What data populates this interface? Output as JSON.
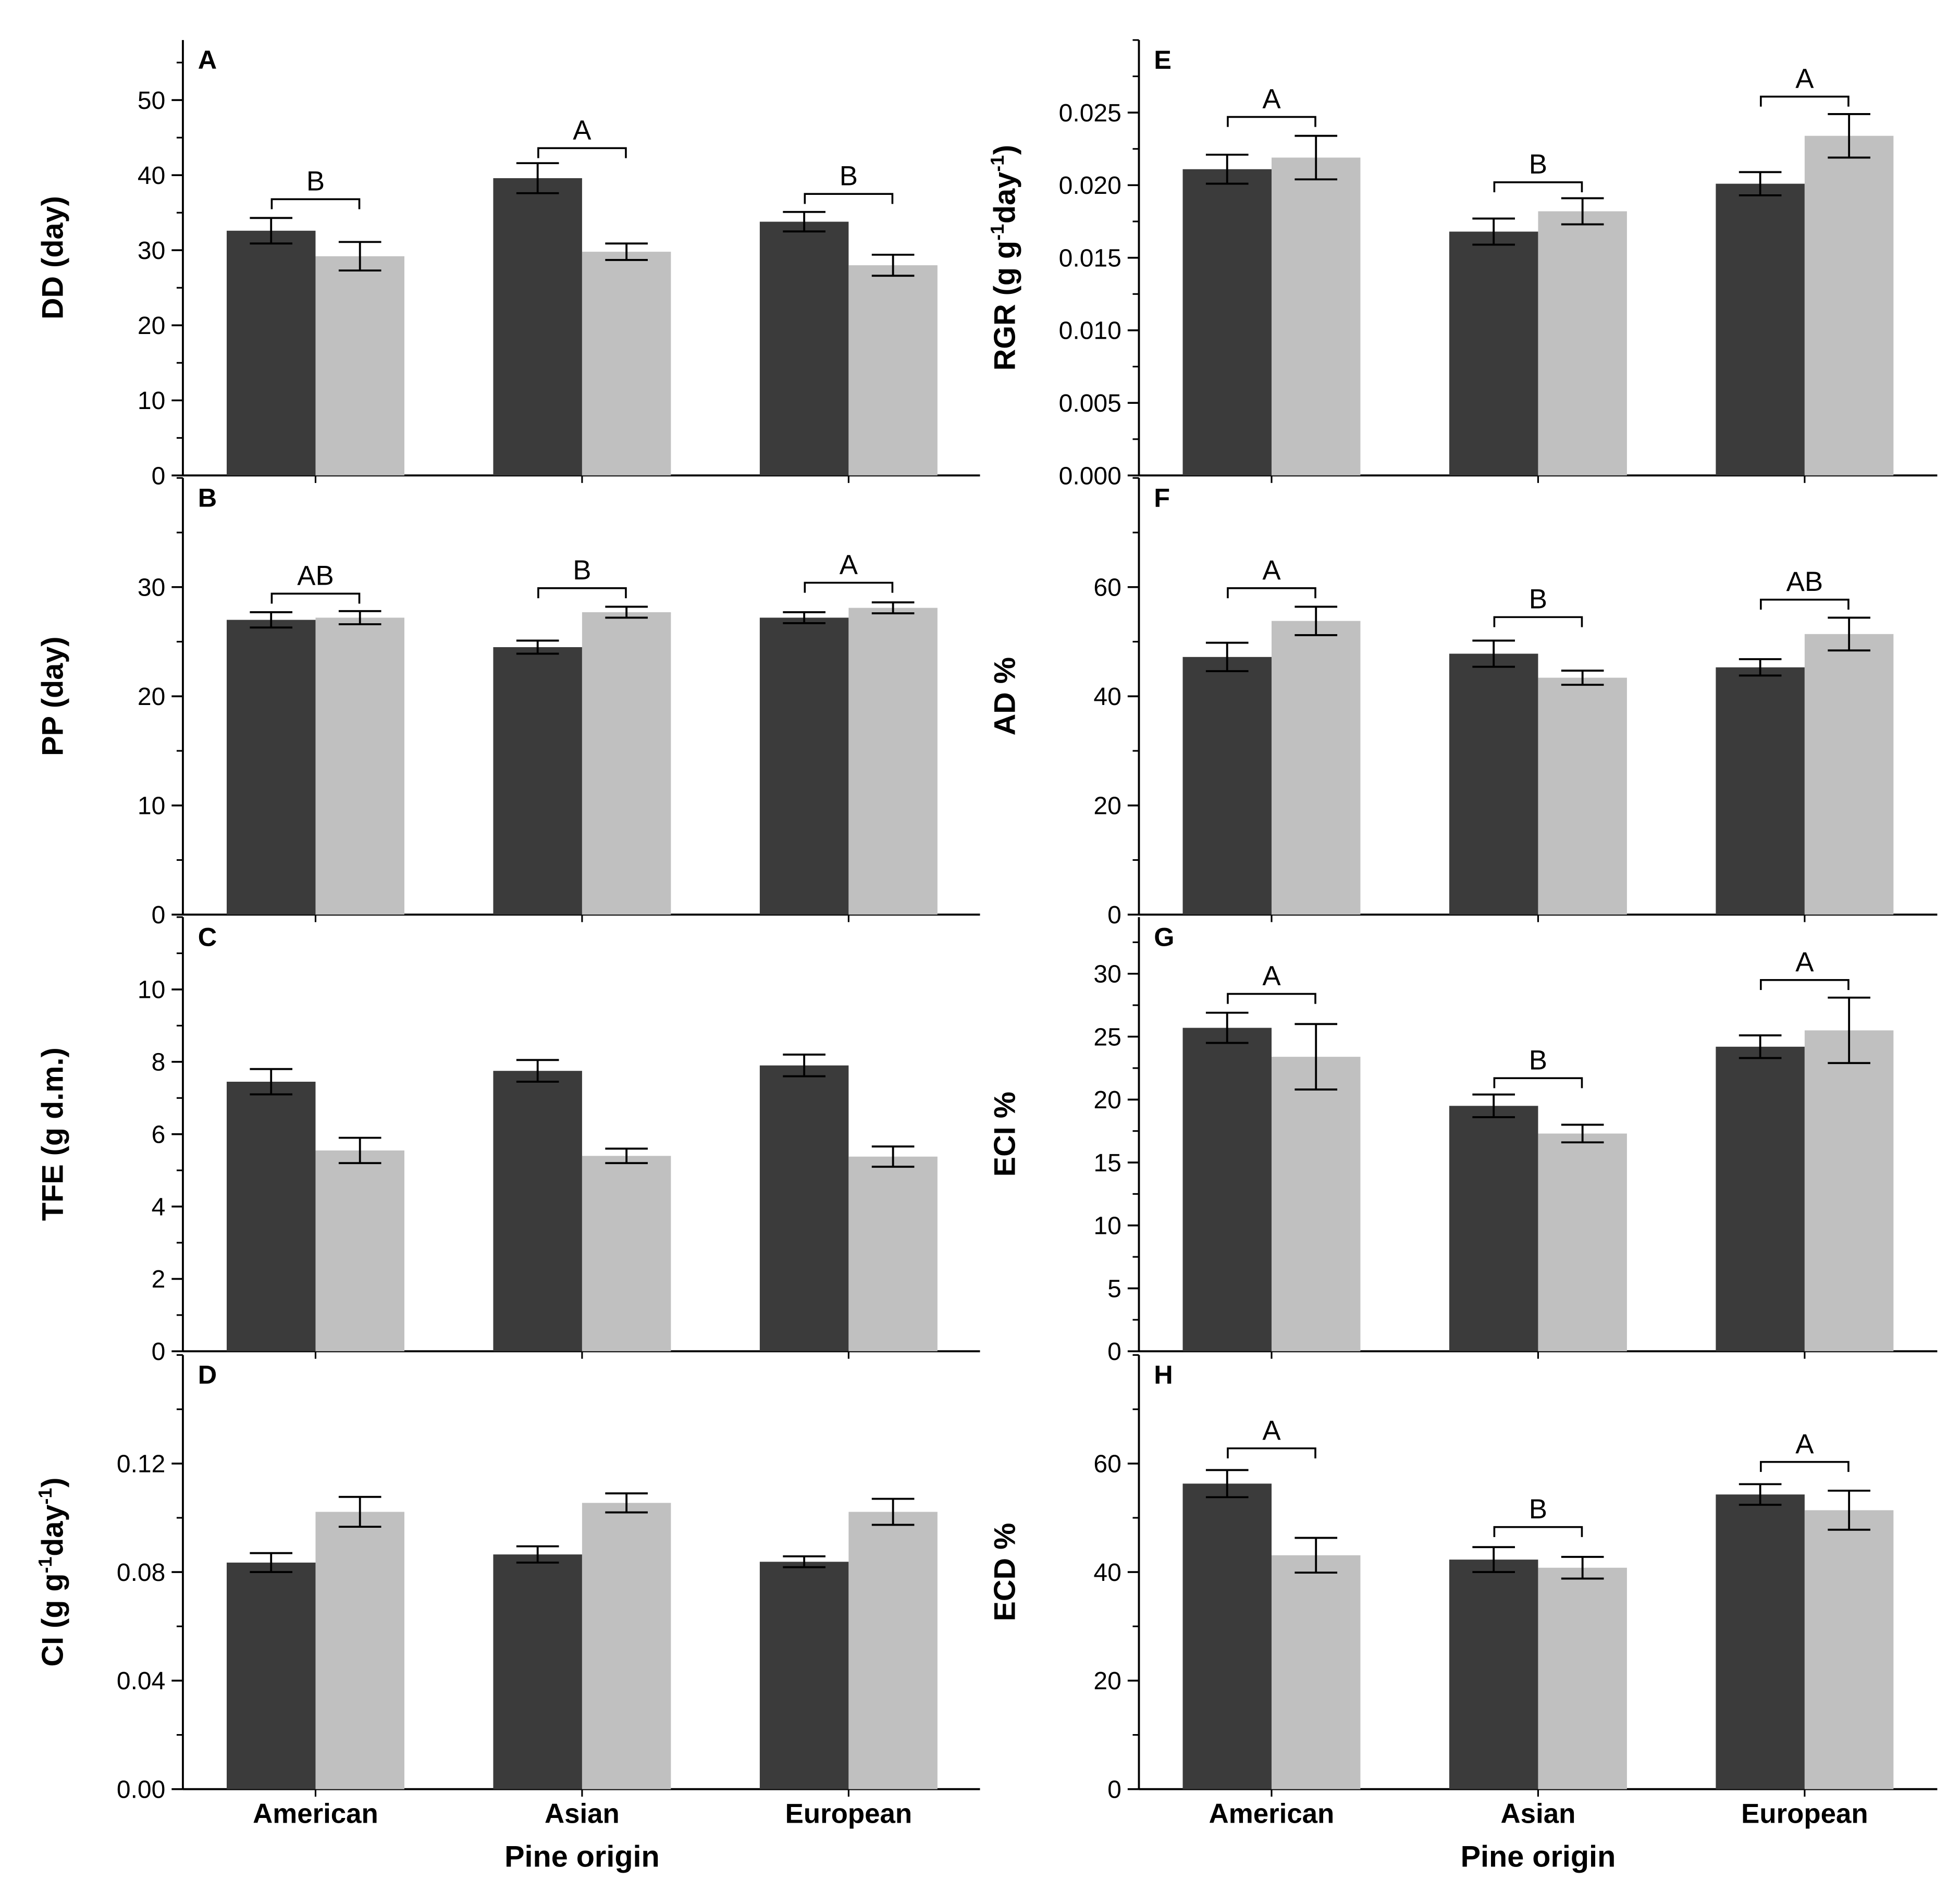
{
  "colors": {
    "dark": "#3b3b3b",
    "light": "#c0c0c0",
    "axis": "#000000"
  },
  "xlabel": "Pine origin",
  "categories": [
    "American",
    "Asian",
    "European"
  ],
  "chart_data": [
    {
      "type": "bar",
      "panel": "A",
      "ylabel": "DD (day)",
      "ylim": [
        0,
        58
      ],
      "ticks": [
        0,
        10,
        20,
        30,
        40,
        50
      ],
      "tick_labels": [
        "0",
        "10",
        "20",
        "30",
        "40",
        "50"
      ],
      "minor": 5,
      "series": [
        {
          "name": "dark",
          "values": [
            32.6,
            39.6,
            33.8
          ],
          "errors": [
            1.7,
            2.0,
            1.3
          ]
        },
        {
          "name": "light",
          "values": [
            29.2,
            29.8,
            28.0
          ],
          "errors": [
            1.9,
            1.1,
            1.4
          ]
        }
      ],
      "letters": [
        "B",
        "A",
        "B"
      ],
      "letter_y": [
        36.8,
        43.6,
        37.5
      ]
    },
    {
      "type": "bar",
      "panel": "B",
      "ylabel": "PP (day)",
      "ylim": [
        0,
        40
      ],
      "ticks": [
        0,
        10,
        20,
        30
      ],
      "tick_labels": [
        "0",
        "10",
        "20",
        "30"
      ],
      "minor": 5,
      "series": [
        {
          "name": "dark",
          "values": [
            27.0,
            24.5,
            27.2
          ],
          "errors": [
            0.7,
            0.6,
            0.5
          ]
        },
        {
          "name": "light",
          "values": [
            27.2,
            27.7,
            28.1
          ],
          "errors": [
            0.6,
            0.5,
            0.5
          ]
        }
      ],
      "letters": [
        "AB",
        "B",
        "A"
      ],
      "letter_y": [
        29.4,
        29.9,
        30.4
      ]
    },
    {
      "type": "bar",
      "panel": "C",
      "ylabel": "TFE (g d.m.)",
      "ylim": [
        0,
        12
      ],
      "ticks": [
        0,
        2,
        4,
        6,
        8,
        10
      ],
      "tick_labels": [
        "0",
        "2",
        "4",
        "6",
        "8",
        "10"
      ],
      "minor": 1,
      "series": [
        {
          "name": "dark",
          "values": [
            7.45,
            7.75,
            7.9
          ],
          "errors": [
            0.35,
            0.3,
            0.3
          ]
        },
        {
          "name": "light",
          "values": [
            5.55,
            5.4,
            5.38
          ],
          "errors": [
            0.35,
            0.2,
            0.28
          ]
        }
      ],
      "letters": [],
      "letter_y": []
    },
    {
      "type": "bar",
      "panel": "D",
      "ylabel": "CI (g g-1 day-1)",
      "ylim": [
        0,
        0.16
      ],
      "ticks": [
        0,
        0.04,
        0.08,
        0.12
      ],
      "tick_labels": [
        "0.00",
        "0.04",
        "0.08",
        "0.12"
      ],
      "minor": 0.02,
      "series": [
        {
          "name": "dark",
          "values": [
            0.0835,
            0.0865,
            0.0838
          ],
          "errors": [
            0.0035,
            0.003,
            0.002
          ]
        },
        {
          "name": "light",
          "values": [
            0.1022,
            0.1055,
            0.1022
          ],
          "errors": [
            0.0055,
            0.0035,
            0.0048
          ]
        }
      ],
      "letters": [],
      "letter_y": []
    },
    {
      "type": "bar",
      "panel": "E",
      "ylabel": "RGR (g g-1 day-1)",
      "ylim": [
        0,
        0.03
      ],
      "ticks": [
        0,
        0.005,
        0.01,
        0.015,
        0.02,
        0.025
      ],
      "tick_labels": [
        "0.000",
        "0.005",
        "0.010",
        "0.015",
        "0.020",
        "0.025"
      ],
      "minor": 0.0025,
      "series": [
        {
          "name": "dark",
          "values": [
            0.0211,
            0.0168,
            0.0201
          ],
          "errors": [
            0.001,
            0.0009,
            0.0008
          ]
        },
        {
          "name": "light",
          "values": [
            0.0219,
            0.0182,
            0.0234
          ],
          "errors": [
            0.0015,
            0.0009,
            0.0015
          ]
        }
      ],
      "letters": [
        "A",
        "B",
        "A"
      ],
      "letter_y": [
        0.0247,
        0.0202,
        0.0261
      ]
    },
    {
      "type": "bar",
      "panel": "F",
      "ylabel": "AD %",
      "ylim": [
        0,
        80
      ],
      "ticks": [
        0,
        20,
        40,
        60
      ],
      "tick_labels": [
        "0",
        "20",
        "40",
        "60"
      ],
      "minor": 10,
      "series": [
        {
          "name": "dark",
          "values": [
            47.2,
            47.8,
            45.3
          ],
          "errors": [
            2.6,
            2.4,
            1.5
          ]
        },
        {
          "name": "light",
          "values": [
            53.8,
            43.4,
            51.4
          ],
          "errors": [
            2.6,
            1.3,
            3.0
          ]
        }
      ],
      "letters": [
        "A",
        "B",
        "AB"
      ],
      "letter_y": [
        59.8,
        54.5,
        57.7
      ]
    },
    {
      "type": "bar",
      "panel": "G",
      "ylabel": "ECI %",
      "ylim": [
        0,
        34.5
      ],
      "ticks": [
        0,
        5,
        10,
        15,
        20,
        25,
        30
      ],
      "tick_labels": [
        "0",
        "5",
        "10",
        "15",
        "20",
        "25",
        "30"
      ],
      "minor": 2.5,
      "series": [
        {
          "name": "dark",
          "values": [
            25.7,
            19.5,
            24.2
          ],
          "errors": [
            1.2,
            0.9,
            0.9
          ]
        },
        {
          "name": "light",
          "values": [
            23.4,
            17.3,
            25.5
          ],
          "errors": [
            2.6,
            0.7,
            2.6
          ]
        }
      ],
      "letters": [
        "A",
        "B",
        "A"
      ],
      "letter_y": [
        28.4,
        21.7,
        29.5
      ]
    },
    {
      "type": "bar",
      "panel": "H",
      "ylabel": "ECD %",
      "ylim": [
        0,
        80
      ],
      "ticks": [
        0,
        20,
        40,
        60
      ],
      "tick_labels": [
        "0",
        "20",
        "40",
        "60"
      ],
      "minor": 10,
      "series": [
        {
          "name": "dark",
          "values": [
            56.3,
            42.3,
            54.3
          ],
          "errors": [
            2.5,
            2.3,
            1.9
          ]
        },
        {
          "name": "light",
          "values": [
            43.1,
            40.8,
            51.4
          ],
          "errors": [
            3.2,
            2.0,
            3.6
          ]
        }
      ],
      "letters": [
        "A",
        "B",
        "A"
      ],
      "letter_y": [
        62.8,
        48.3,
        60.3
      ]
    }
  ]
}
